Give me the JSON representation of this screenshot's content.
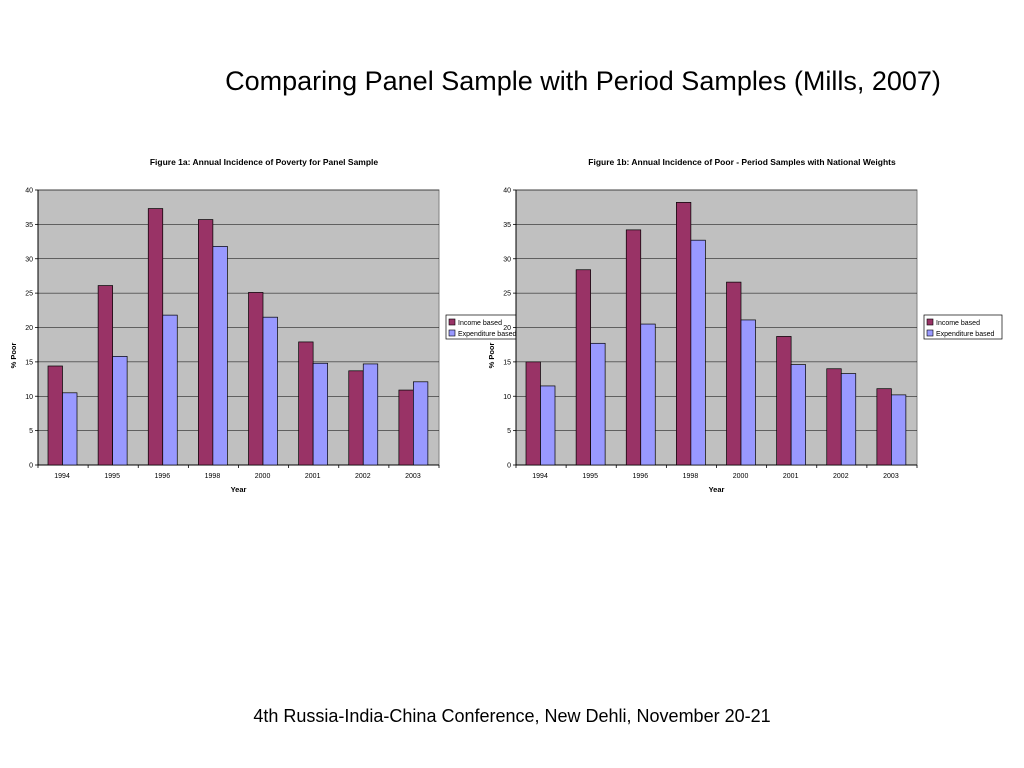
{
  "slide": {
    "title": "Comparing Panel Sample with Period Samples (Mills, 2007)",
    "footer": "4th Russia-India-China Conference, New Dehli, November 20-21"
  },
  "colors": {
    "income": "#993366",
    "expenditure": "#9999ff",
    "plot_bg": "#c0c0c0"
  },
  "chart_data": [
    {
      "type": "bar",
      "title": "Figure 1a: Annual Incidence of Poverty for Panel Sample",
      "xlabel": "Year",
      "ylabel": "% Poor",
      "ylim": [
        0,
        40
      ],
      "yticks": [
        0,
        5,
        10,
        15,
        20,
        25,
        30,
        35,
        40
      ],
      "grid": true,
      "legend": "right",
      "categories": [
        "1994",
        "1995",
        "1996",
        "1998",
        "2000",
        "2001",
        "2002",
        "2003"
      ],
      "series": [
        {
          "name": "Income based",
          "values": [
            14.4,
            26.1,
            37.3,
            35.7,
            25.1,
            17.9,
            13.7,
            10.9
          ]
        },
        {
          "name": "Expenditure based",
          "values": [
            10.5,
            15.8,
            21.8,
            31.8,
            21.5,
            14.8,
            14.7,
            12.1
          ]
        }
      ]
    },
    {
      "type": "bar",
      "title": "Figure 1b: Annual Incidence of Poor - Period Samples with National Weights",
      "xlabel": "Year",
      "ylabel": "% Poor",
      "ylim": [
        0,
        40
      ],
      "yticks": [
        0,
        5,
        10,
        15,
        20,
        25,
        30,
        35,
        40
      ],
      "grid": true,
      "legend": "right",
      "categories": [
        "1994",
        "1995",
        "1996",
        "1998",
        "2000",
        "2001",
        "2002",
        "2003"
      ],
      "series": [
        {
          "name": "Income based",
          "values": [
            15.0,
            28.4,
            34.2,
            38.2,
            26.6,
            18.7,
            14.0,
            11.1
          ]
        },
        {
          "name": "Expenditure based",
          "values": [
            11.5,
            17.7,
            20.5,
            32.7,
            21.1,
            14.6,
            13.3,
            10.2
          ]
        }
      ]
    }
  ]
}
